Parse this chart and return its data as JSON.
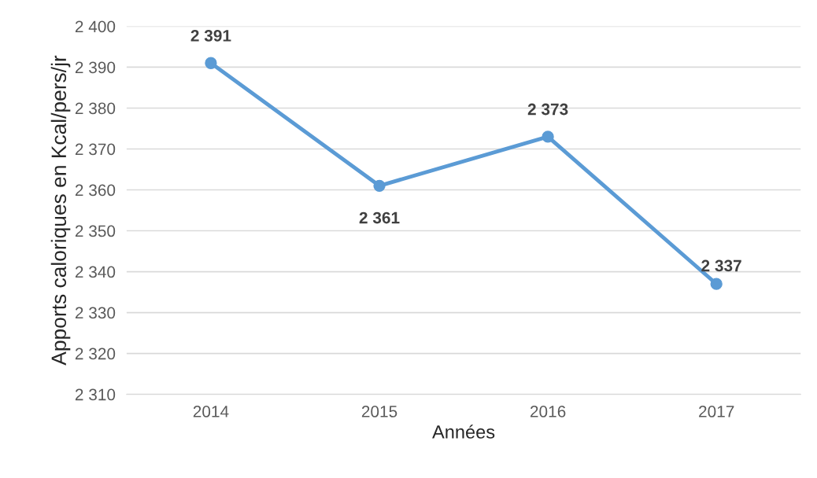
{
  "chart_data": {
    "type": "line",
    "xlabel": "Années",
    "ylabel": "Apports caloriques en Kcal/pers/jr",
    "categories": [
      "2014",
      "2015",
      "2016",
      "2017"
    ],
    "series": [
      {
        "color": "#5b9bd5",
        "values": [
          2391,
          2361,
          2373,
          2337
        ],
        "value_labels": [
          "2 391",
          "2 361",
          "2 373",
          "2 337"
        ]
      }
    ],
    "ylim": [
      2310,
      2400
    ],
    "yticks": [
      {
        "value": 2310,
        "label": "2 310"
      },
      {
        "value": 2320,
        "label": "2 320"
      },
      {
        "value": 2330,
        "label": "2 330"
      },
      {
        "value": 2340,
        "label": "2 340"
      },
      {
        "value": 2350,
        "label": "2 350"
      },
      {
        "value": 2360,
        "label": "2 360"
      },
      {
        "value": 2370,
        "label": "2 370"
      },
      {
        "value": 2380,
        "label": "2 380"
      },
      {
        "value": 2390,
        "label": "2 390"
      },
      {
        "value": 2400,
        "label": "2 400"
      }
    ],
    "grid": "y",
    "marker": "circle",
    "line_style": "solid",
    "legend": false
  }
}
